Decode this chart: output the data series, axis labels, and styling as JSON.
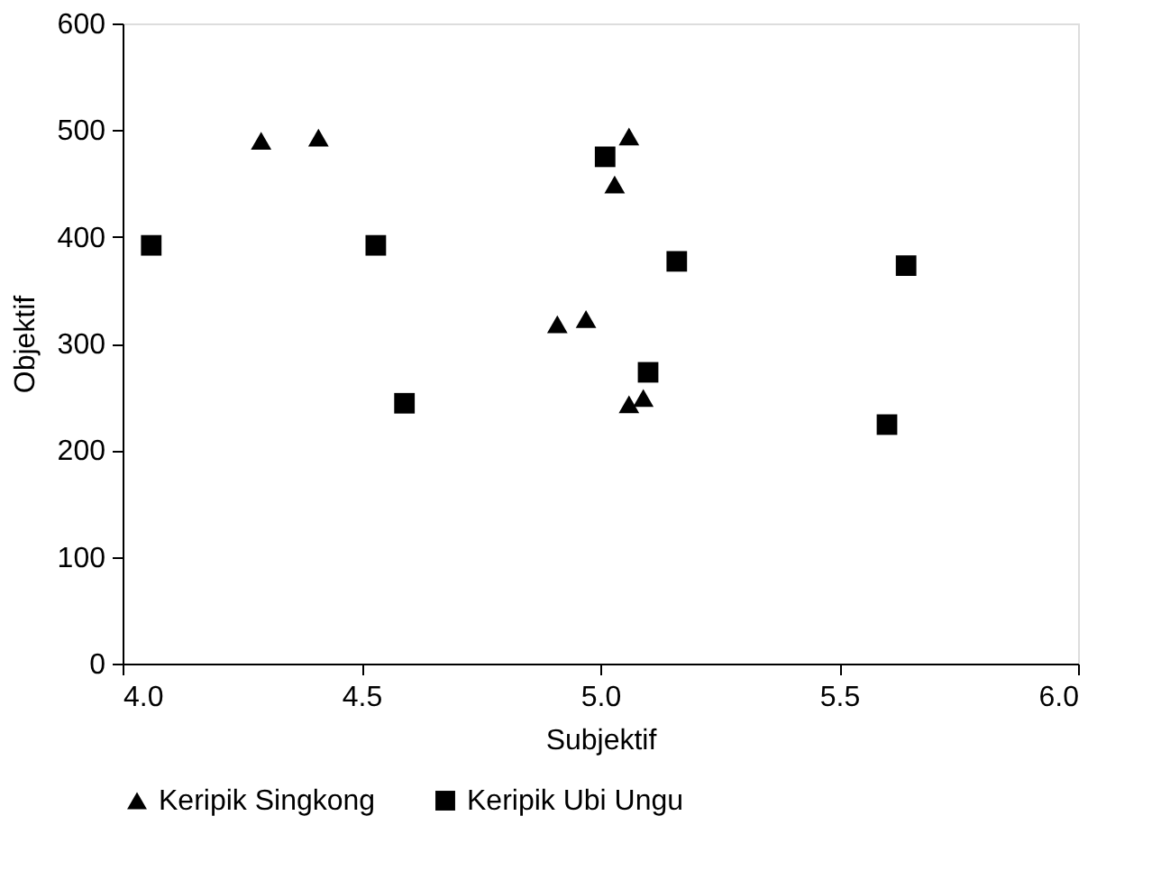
{
  "chart_data": {
    "type": "scatter",
    "xlabel": "Subjektif",
    "ylabel": "Objektif",
    "xlim": [
      4.0,
      6.0
    ],
    "xticks": [
      {
        "value": 4.0,
        "label": "4.0"
      },
      {
        "value": 4.5,
        "label": "4.5"
      },
      {
        "value": 5.0,
        "label": "5.0"
      },
      {
        "value": 5.5,
        "label": "5.5"
      },
      {
        "value": 6.0,
        "label": "6.0"
      }
    ],
    "ylim": [
      0,
      600
    ],
    "yticks": [
      0,
      100,
      200,
      300,
      400,
      500,
      600
    ],
    "grid": false,
    "legend": "bottom",
    "series": [
      {
        "name": "Keripik Singkong",
        "color": "#000000",
        "marker": "triangle",
        "x": [
          4.29,
          4.41,
          4.91,
          4.97,
          5.03,
          5.06,
          5.06,
          5.09
        ],
        "values": [
          490,
          493,
          318,
          323,
          449,
          494,
          243,
          249
        ]
      },
      {
        "name": "Keripik Ubi Ungu",
        "color": "#000000",
        "marker": "square",
        "x": [
          4.06,
          4.53,
          4.59,
          5.01,
          5.1,
          5.16,
          5.6,
          5.64
        ],
        "values": [
          392,
          392,
          244,
          475,
          273,
          377,
          224,
          373
        ]
      }
    ]
  }
}
